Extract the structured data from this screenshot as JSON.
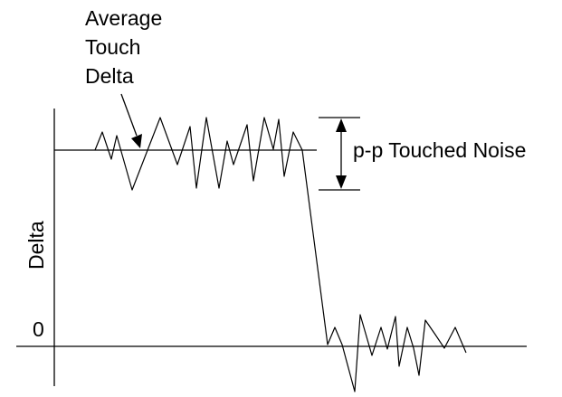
{
  "labels": {
    "average_line1": "Average",
    "average_line2": "Touch",
    "average_line3": "Delta",
    "noise": "p-p Touched Noise",
    "y_axis": "Delta",
    "zero": "0"
  },
  "colors": {
    "ink": "#000000",
    "background": "#ffffff"
  }
}
